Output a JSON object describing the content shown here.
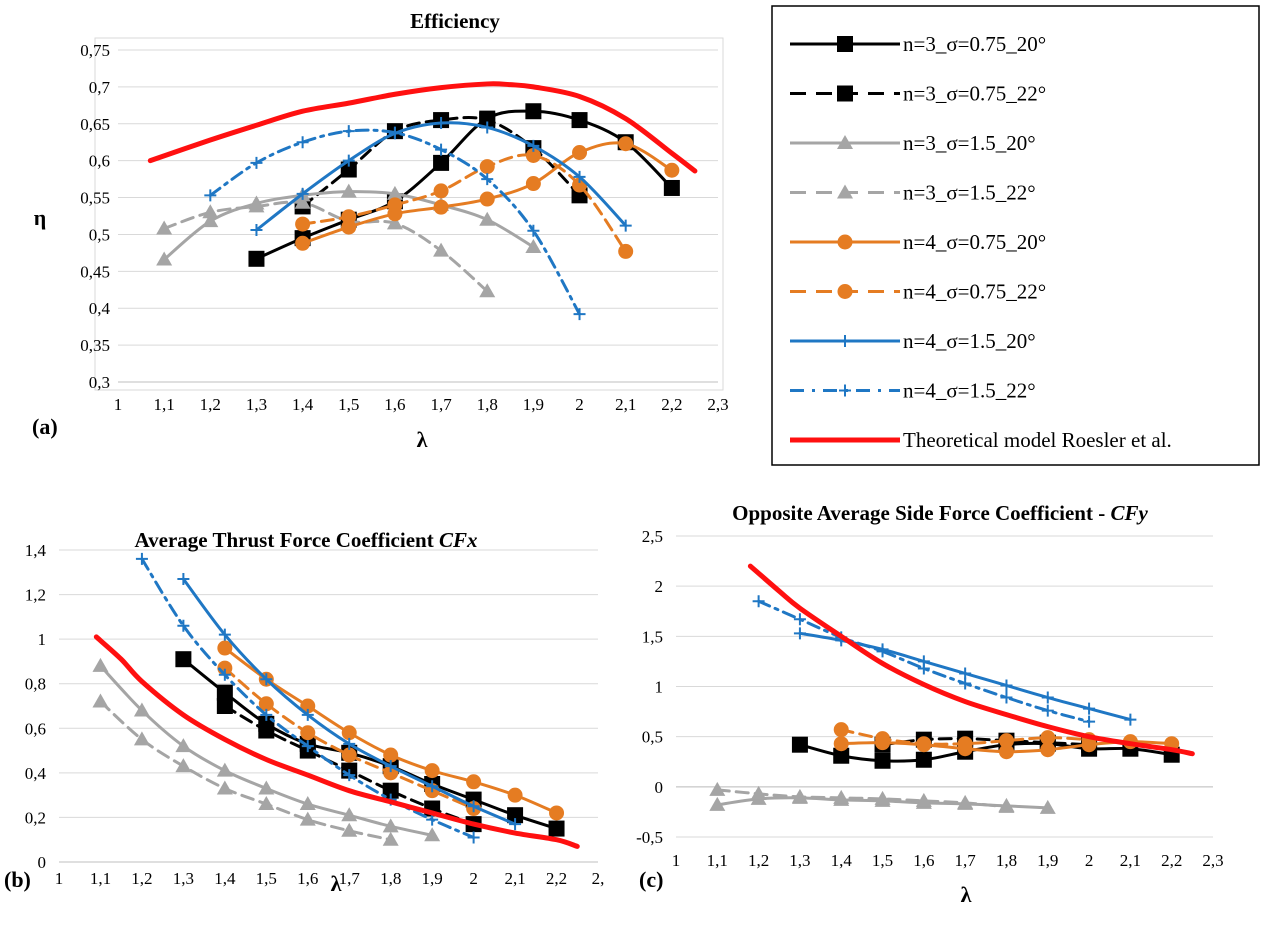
{
  "panels": [
    {
      "id": "a",
      "letter": "(a)",
      "title": "Efficiency",
      "title_italic_part": "",
      "xlabel": "λ",
      "ylabel": "η",
      "xlim": [
        1,
        2.3
      ],
      "ylim": [
        0.3,
        0.75
      ],
      "xticks": [
        "1",
        "1,1",
        "1,2",
        "1,3",
        "1,4",
        "1,5",
        "1,6",
        "1,7",
        "1,8",
        "1,9",
        "2",
        "2,1",
        "2,2",
        "2,3"
      ],
      "yticks": [
        "0,3",
        "0,35",
        "0,4",
        "0,45",
        "0,5",
        "0,55",
        "0,6",
        "0,65",
        "0,7",
        "0,75"
      ]
    },
    {
      "id": "b",
      "letter": "(b)",
      "title": "Average Thrust Force Coefficient ",
      "title_italic_part": "CFx",
      "xlabel": "λ",
      "ylabel": "",
      "xlim": [
        1,
        2.3
      ],
      "ylim": [
        0,
        1.4
      ],
      "xticks": [
        "1",
        "1,1",
        "1,2",
        "1,3",
        "1,4",
        "1,5",
        "1,6",
        "1,7",
        "1,8",
        "1,9",
        "2",
        "2,1",
        "2,2",
        "2,"
      ],
      "yticks": [
        "0",
        "0,2",
        "0,4",
        "0,6",
        "0,8",
        "1",
        "1,2",
        "1,4"
      ]
    },
    {
      "id": "c",
      "letter": "(c)",
      "title": "Opposite Average Side Force Coefficient  - ",
      "title_italic_part": "CFy",
      "xlabel": "λ",
      "ylabel": "",
      "xlim": [
        1,
        2.3
      ],
      "ylim": [
        -0.5,
        2.5
      ],
      "xticks": [
        "1",
        "1,1",
        "1,2",
        "1,3",
        "1,4",
        "1,5",
        "1,6",
        "1,7",
        "1,8",
        "1,9",
        "2",
        "2,1",
        "2,2",
        "2,3"
      ],
      "yticks": [
        "-0,5",
        "0",
        "0,5",
        "1",
        "1,5",
        "2",
        "2,5"
      ]
    }
  ],
  "legend": [
    {
      "label": "n=3_σ=0.75_20°",
      "color": "#000000",
      "marker": "square",
      "dashed": false
    },
    {
      "label": "n=3_σ=0.75_22°",
      "color": "#000000",
      "marker": "square",
      "dashed": true
    },
    {
      "label": "n=3_σ=1.5_20°",
      "color": "#a5a5a5",
      "marker": "triangle",
      "dashed": false
    },
    {
      "label": "n=3_σ=1.5_22°",
      "color": "#a5a5a5",
      "marker": "triangle",
      "dashed": true
    },
    {
      "label": "n=4_σ=0.75_20°",
      "color": "#e57c22",
      "marker": "circle",
      "dashed": false
    },
    {
      "label": "n=4_σ=0.75_22°",
      "color": "#e57c22",
      "marker": "circle",
      "dashed": true
    },
    {
      "label": "n=4_σ=1.5_20°",
      "color": "#1f77c4",
      "marker": "plus",
      "dashed": false
    },
    {
      "label": "n=4_σ=1.5_22°",
      "color": "#1f77c4",
      "marker": "plus",
      "dashed": true
    },
    {
      "label": "Theoretical model Roesler et al.",
      "color": "#ff1010",
      "marker": "none",
      "dashed": false
    }
  ],
  "chart_data": [
    {
      "type": "line",
      "title": "Efficiency",
      "xlabel": "λ",
      "ylabel": "η",
      "xlim": [
        1,
        2.3
      ],
      "ylim": [
        0.3,
        0.75
      ],
      "grid": true,
      "legend_position": "right",
      "series": [
        {
          "name": "n=3_σ=0.75_20°",
          "x": [
            1.3,
            1.4,
            1.5,
            1.6,
            1.7,
            1.8,
            1.9,
            2.0,
            2.1,
            2.2
          ],
          "y": [
            0.467,
            0.495,
            0.52,
            0.545,
            0.597,
            0.657,
            0.667,
            0.655,
            0.625,
            0.563
          ]
        },
        {
          "name": "n=3_σ=0.75_22°",
          "x": [
            1.4,
            1.5,
            1.6,
            1.7,
            1.8,
            1.9,
            2.0
          ],
          "y": [
            0.538,
            0.588,
            0.64,
            0.655,
            0.655,
            0.617,
            0.553
          ]
        },
        {
          "name": "n=3_σ=1.5_20°",
          "x": [
            1.1,
            1.2,
            1.3,
            1.4,
            1.5,
            1.6,
            1.7,
            1.8,
            1.9
          ],
          "y": [
            0.466,
            0.518,
            0.542,
            0.553,
            0.558,
            0.555,
            0.54,
            0.52,
            0.483
          ]
        },
        {
          "name": "n=3_σ=1.5_22°",
          "x": [
            1.1,
            1.2,
            1.3,
            1.4,
            1.5,
            1.6,
            1.7,
            1.8
          ],
          "y": [
            0.508,
            0.53,
            0.538,
            0.543,
            0.518,
            0.515,
            0.478,
            0.423
          ]
        },
        {
          "name": "n=4_σ=0.75_20°",
          "x": [
            1.4,
            1.5,
            1.6,
            1.7,
            1.8,
            1.9,
            2.0,
            2.1,
            2.2
          ],
          "y": [
            0.488,
            0.51,
            0.528,
            0.537,
            0.548,
            0.569,
            0.611,
            0.623,
            0.587
          ]
        },
        {
          "name": "n=4_σ=0.75_22°",
          "x": [
            1.4,
            1.5,
            1.6,
            1.7,
            1.8,
            1.9,
            2.0,
            2.1
          ],
          "y": [
            0.514,
            0.524,
            0.54,
            0.559,
            0.592,
            0.607,
            0.567,
            0.477
          ]
        },
        {
          "name": "n=4_σ=1.5_20°",
          "x": [
            1.3,
            1.4,
            1.5,
            1.6,
            1.7,
            1.8,
            1.9,
            2.0,
            2.1
          ],
          "y": [
            0.506,
            0.555,
            0.6,
            0.637,
            0.651,
            0.645,
            0.62,
            0.578,
            0.512
          ]
        },
        {
          "name": "n=4_σ=1.5_22°",
          "x": [
            1.2,
            1.3,
            1.4,
            1.5,
            1.6,
            1.7,
            1.8,
            1.9,
            2.0
          ],
          "y": [
            0.553,
            0.597,
            0.625,
            0.64,
            0.638,
            0.615,
            0.575,
            0.505,
            0.392
          ]
        },
        {
          "name": "Theoretical model Roesler et al.",
          "x": [
            1.07,
            1.2,
            1.3,
            1.4,
            1.5,
            1.6,
            1.7,
            1.8,
            1.85,
            1.9,
            2.0,
            2.1,
            2.2,
            2.25
          ],
          "y": [
            0.6,
            0.628,
            0.648,
            0.667,
            0.678,
            0.69,
            0.699,
            0.704,
            0.703,
            0.7,
            0.687,
            0.657,
            0.61,
            0.586
          ]
        }
      ]
    },
    {
      "type": "line",
      "title": "Average Thrust Force Coefficient CFx",
      "xlabel": "λ",
      "ylabel": "",
      "xlim": [
        1,
        2.3
      ],
      "ylim": [
        0,
        1.4
      ],
      "grid": true,
      "series": [
        {
          "name": "n=3_σ=0.75_20°",
          "x": [
            1.3,
            1.4,
            1.5,
            1.6,
            1.7,
            1.8,
            1.9,
            2.0,
            2.1,
            2.2
          ],
          "y": [
            0.91,
            0.76,
            0.62,
            0.53,
            0.49,
            0.43,
            0.35,
            0.28,
            0.21,
            0.15
          ]
        },
        {
          "name": "n=3_σ=0.75_22°",
          "x": [
            1.4,
            1.5,
            1.6,
            1.7,
            1.8,
            1.9,
            2.0
          ],
          "y": [
            0.7,
            0.59,
            0.5,
            0.41,
            0.32,
            0.24,
            0.17
          ]
        },
        {
          "name": "n=3_σ=1.5_20°",
          "x": [
            1.1,
            1.2,
            1.3,
            1.4,
            1.5,
            1.6,
            1.7,
            1.8,
            1.9
          ],
          "y": [
            0.88,
            0.68,
            0.52,
            0.41,
            0.33,
            0.26,
            0.21,
            0.16,
            0.12
          ]
        },
        {
          "name": "n=3_σ=1.5_22°",
          "x": [
            1.1,
            1.2,
            1.3,
            1.4,
            1.5,
            1.6,
            1.7,
            1.8
          ],
          "y": [
            0.72,
            0.55,
            0.43,
            0.33,
            0.26,
            0.19,
            0.14,
            0.1
          ]
        },
        {
          "name": "n=4_σ=0.75_20°",
          "x": [
            1.4,
            1.5,
            1.6,
            1.7,
            1.8,
            1.9,
            2.0,
            2.1,
            2.2
          ],
          "y": [
            0.96,
            0.82,
            0.7,
            0.58,
            0.48,
            0.41,
            0.36,
            0.3,
            0.22
          ]
        },
        {
          "name": "n=4_σ=0.75_22°",
          "x": [
            1.4,
            1.5,
            1.6,
            1.7,
            1.8,
            1.9,
            2.0
          ],
          "y": [
            0.87,
            0.71,
            0.58,
            0.48,
            0.4,
            0.32,
            0.24
          ]
        },
        {
          "name": "n=4_σ=1.5_20°",
          "x": [
            1.3,
            1.4,
            1.5,
            1.6,
            1.7,
            1.8,
            1.9,
            2.0,
            2.1
          ],
          "y": [
            1.27,
            1.02,
            0.82,
            0.66,
            0.53,
            0.43,
            0.34,
            0.25,
            0.17
          ]
        },
        {
          "name": "n=4_σ=1.5_22°",
          "x": [
            1.2,
            1.3,
            1.4,
            1.5,
            1.6,
            1.7,
            1.8,
            1.9,
            2.0
          ],
          "y": [
            1.36,
            1.06,
            0.84,
            0.66,
            0.52,
            0.39,
            0.28,
            0.19,
            0.11
          ]
        },
        {
          "name": "Theoretical model Roesler et al.",
          "x": [
            1.09,
            1.15,
            1.2,
            1.3,
            1.4,
            1.5,
            1.6,
            1.7,
            1.8,
            1.9,
            2.0,
            2.1,
            2.2,
            2.25
          ],
          "y": [
            1.01,
            0.91,
            0.81,
            0.66,
            0.55,
            0.46,
            0.39,
            0.32,
            0.27,
            0.22,
            0.17,
            0.13,
            0.1,
            0.07
          ]
        }
      ]
    },
    {
      "type": "line",
      "title": "Opposite Average Side Force Coefficient - CFy",
      "xlabel": "λ",
      "ylabel": "",
      "xlim": [
        1,
        2.3
      ],
      "ylim": [
        -0.5,
        2.5
      ],
      "grid": true,
      "series": [
        {
          "name": "n=3_σ=0.75_20°",
          "x": [
            1.3,
            1.4,
            1.5,
            1.6,
            1.7,
            1.8,
            1.9,
            2.0,
            2.1,
            2.2
          ],
          "y": [
            0.42,
            0.31,
            0.26,
            0.27,
            0.35,
            0.42,
            0.43,
            0.38,
            0.38,
            0.32
          ]
        },
        {
          "name": "n=3_σ=0.75_22°",
          "x": [
            1.5,
            1.6,
            1.7,
            1.8,
            1.9,
            2.0
          ],
          "y": [
            0.42,
            0.47,
            0.48,
            0.46,
            0.44,
            0.42
          ]
        },
        {
          "name": "n=3_σ=1.5_20°",
          "x": [
            1.1,
            1.2,
            1.3,
            1.4,
            1.5,
            1.6,
            1.7,
            1.8,
            1.9
          ],
          "y": [
            -0.18,
            -0.12,
            -0.11,
            -0.13,
            -0.14,
            -0.16,
            -0.17,
            -0.19,
            -0.21
          ]
        },
        {
          "name": "n=3_σ=1.5_22°",
          "x": [
            1.1,
            1.2,
            1.3,
            1.4,
            1.5,
            1.6,
            1.7,
            1.8
          ],
          "y": [
            -0.03,
            -0.07,
            -0.1,
            -0.11,
            -0.12,
            -0.14,
            -0.16,
            -0.2
          ]
        },
        {
          "name": "n=4_σ=0.75_20°",
          "x": [
            1.4,
            1.5,
            1.6,
            1.7,
            1.8,
            1.9,
            2.0,
            2.1,
            2.2
          ],
          "y": [
            0.43,
            0.44,
            0.42,
            0.38,
            0.35,
            0.37,
            0.42,
            0.45,
            0.43
          ]
        },
        {
          "name": "n=4_σ=0.75_22°",
          "x": [
            1.4,
            1.5,
            1.6,
            1.7,
            1.8,
            1.9,
            2.0
          ],
          "y": [
            0.57,
            0.48,
            0.43,
            0.43,
            0.46,
            0.49,
            0.47
          ]
        },
        {
          "name": "n=4_σ=1.5_20°",
          "x": [
            1.3,
            1.4,
            1.5,
            1.6,
            1.7,
            1.8,
            1.9,
            2.0,
            2.1
          ],
          "y": [
            1.53,
            1.46,
            1.37,
            1.25,
            1.13,
            1.01,
            0.89,
            0.78,
            0.67
          ]
        },
        {
          "name": "n=4_σ=1.5_22°",
          "x": [
            1.2,
            1.3,
            1.4,
            1.5,
            1.6,
            1.7,
            1.8,
            1.9,
            2.0
          ],
          "y": [
            1.85,
            1.67,
            1.49,
            1.35,
            1.18,
            1.03,
            0.89,
            0.76,
            0.65
          ]
        },
        {
          "name": "Theoretical model Roesler et al.",
          "x": [
            1.18,
            1.25,
            1.3,
            1.4,
            1.5,
            1.6,
            1.7,
            1.8,
            1.9,
            2.0,
            2.1,
            2.2,
            2.25
          ],
          "y": [
            2.2,
            1.95,
            1.78,
            1.5,
            1.23,
            1.02,
            0.85,
            0.72,
            0.6,
            0.5,
            0.43,
            0.37,
            0.33
          ]
        }
      ]
    }
  ]
}
